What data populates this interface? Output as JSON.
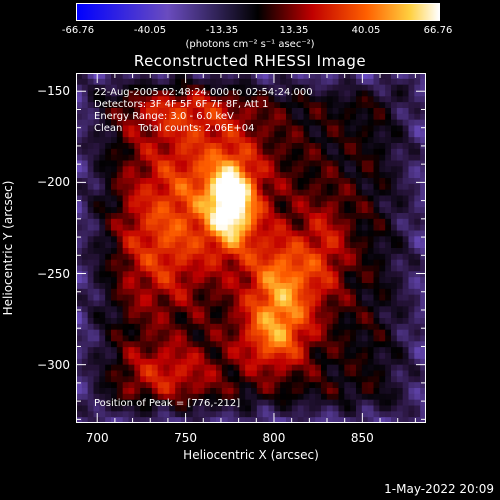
{
  "chart_data": {
    "type": "heatmap",
    "title": "Reconstructed RHESSI Image",
    "xlabel": "Heliocentric X (arcsec)",
    "ylabel": "Heliocentric Y (arcsec)",
    "xlim": [
      688,
      886
    ],
    "ylim": [
      -332,
      -140
    ],
    "xticks": [
      700,
      750,
      800,
      850
    ],
    "yticks": [
      -150,
      -200,
      -250,
      -300
    ],
    "colorbar": {
      "range": [
        -66.76,
        66.76
      ],
      "ticks": [
        "-66.76",
        "-40.05",
        "-13.35",
        "13.35",
        "40.05",
        "66.76"
      ],
      "units": "(photons cm⁻² s⁻¹ asec⁻²)"
    },
    "annotations": [
      "22-Aug-2005 02:48:24.000 to 02:54:24.000",
      "Detectors: 3F 4F 5F 6F 7F 8F, Att 1",
      "Energy Range: 3.0 - 6.0 keV",
      "Clean     Total counts: 2.06E+04"
    ],
    "peak_label": "Position of Peak = [776,-212]",
    "peak": {
      "x": 776,
      "y": -212,
      "value": 66.76
    },
    "sources": [
      {
        "x": 776,
        "y": -212,
        "sx": 9,
        "sy": 16,
        "amp": 62
      },
      {
        "x": 760,
        "y": -200,
        "sx": 28,
        "sy": 30,
        "amp": 30
      },
      {
        "x": 805,
        "y": -255,
        "sx": 14,
        "sy": 18,
        "amp": 42
      },
      {
        "x": 800,
        "y": -285,
        "sx": 14,
        "sy": 14,
        "amp": 36
      },
      {
        "x": 740,
        "y": -305,
        "sx": 20,
        "sy": 12,
        "amp": 24
      },
      {
        "x": 735,
        "y": -240,
        "sx": 18,
        "sy": 25,
        "amp": 22
      },
      {
        "x": 830,
        "y": -235,
        "sx": 10,
        "sy": 20,
        "amp": 20
      },
      {
        "x": 745,
        "y": -160,
        "sx": 22,
        "sy": 10,
        "amp": 18
      }
    ]
  },
  "footer": {
    "date": "1-May-2022 20:09"
  }
}
